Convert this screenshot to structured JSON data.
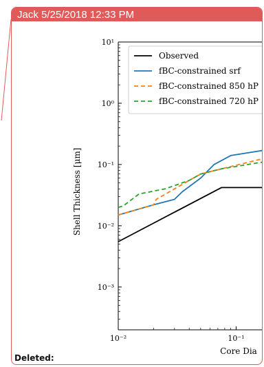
{
  "comment": {
    "author_timestamp": "Jack 5/25/2018 12:33 PM",
    "footer_label": "Deleted:"
  },
  "colors": {
    "accent": "#e05a5a",
    "observed": "#000000",
    "srf": "#1f77b4",
    "hpa850": "#ff7f0e",
    "hpa720": "#2ca02c"
  },
  "chart_data": {
    "type": "line",
    "xlabel": "Core Dia",
    "ylabel": "Shell Thickness [μm]",
    "x_scale": "log",
    "y_scale": "log",
    "xlim": [
      0.01,
      0.17
    ],
    "ylim": [
      0.0002,
      10
    ],
    "x_ticks": [
      {
        "value": 0.01,
        "label": "10⁻²"
      },
      {
        "value": 0.1,
        "label": "10⁻¹"
      }
    ],
    "y_ticks": [
      {
        "value": 10,
        "label": "10¹"
      },
      {
        "value": 1,
        "label": "10⁰"
      },
      {
        "value": 0.1,
        "label": "10⁻¹"
      },
      {
        "value": 0.01,
        "label": "10⁻²"
      },
      {
        "value": 0.001,
        "label": "10⁻³"
      }
    ],
    "legend": {
      "placement": "top-right",
      "entries": [
        "Observed",
        "fBC-constrained srf",
        "fBC-constrained 850 hP",
        "fBC-constrained 720 hP"
      ]
    },
    "series": [
      {
        "name": "Observed",
        "style": "solid",
        "color_key": "observed",
        "points": [
          [
            0.01,
            0.0055
          ],
          [
            0.075,
            0.042
          ],
          [
            0.17,
            0.042
          ]
        ]
      },
      {
        "name": "fBC-constrained srf",
        "style": "solid",
        "color_key": "srf",
        "points": [
          [
            0.01,
            0.015
          ],
          [
            0.02,
            0.022
          ],
          [
            0.03,
            0.027
          ],
          [
            0.035,
            0.036
          ],
          [
            0.05,
            0.06
          ],
          [
            0.065,
            0.1
          ],
          [
            0.09,
            0.14
          ],
          [
            0.17,
            0.17
          ]
        ]
      },
      {
        "name": "fBC-constrained 850 hP",
        "style": "dashed",
        "color_key": "hpa850",
        "points": [
          [
            0.01,
            0.015
          ],
          [
            0.02,
            0.022
          ],
          [
            0.021,
            0.027
          ],
          [
            0.04,
            0.055
          ],
          [
            0.05,
            0.07
          ],
          [
            0.075,
            0.085
          ],
          [
            0.17,
            0.125
          ]
        ]
      },
      {
        "name": "fBC-constrained 720 hP",
        "style": "dashed",
        "color_key": "hpa720",
        "points": [
          [
            0.01,
            0.02
          ],
          [
            0.011,
            0.021
          ],
          [
            0.015,
            0.033
          ],
          [
            0.025,
            0.04
          ],
          [
            0.04,
            0.055
          ],
          [
            0.05,
            0.07
          ],
          [
            0.075,
            0.085
          ],
          [
            0.17,
            0.11
          ]
        ]
      }
    ]
  }
}
